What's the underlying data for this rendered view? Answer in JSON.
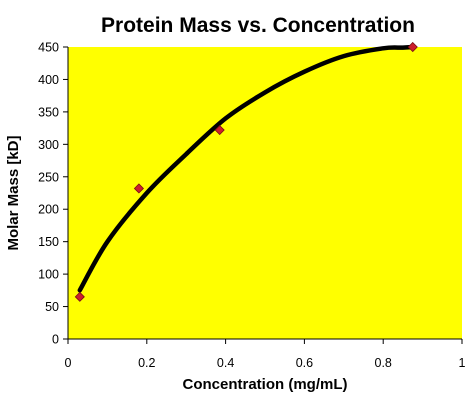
{
  "chart_data": {
    "type": "scatter",
    "title": "Protein Mass vs. Concentration",
    "xlabel": "Concentration (mg/mL)",
    "ylabel": "Molar Mass [kD]",
    "xlim": [
      0,
      1
    ],
    "ylim": [
      0,
      450
    ],
    "xticks": [
      0,
      0.2,
      0.4,
      0.6,
      0.8,
      1
    ],
    "yticks": [
      0,
      50,
      100,
      150,
      200,
      250,
      300,
      350,
      400,
      450
    ],
    "xtick_labels": [
      "0",
      "0.2",
      "0.4",
      "0.6",
      "0.8",
      "1"
    ],
    "ytick_labels": [
      "0",
      "50",
      "100",
      "150",
      "200",
      "250",
      "300",
      "350",
      "400",
      "450"
    ],
    "grid": false,
    "legend": false,
    "series": [
      {
        "type": "scatter",
        "marker": "diamond",
        "x": [
          0.03,
          0.18,
          0.385,
          0.875
        ],
        "y": [
          65,
          232,
          322,
          450
        ]
      },
      {
        "type": "line",
        "x": [
          0.03,
          0.1,
          0.2,
          0.3,
          0.4,
          0.5,
          0.6,
          0.7,
          0.8,
          0.85,
          0.875
        ],
        "y": [
          75,
          150,
          225,
          285,
          340,
          380,
          412,
          436,
          448,
          449,
          450
        ]
      }
    ],
    "colors": {
      "plot_background": "#ffff00",
      "page_background": "#ffffff",
      "marker_fill": "#cc1f2d",
      "marker_stroke": "#7a0f16",
      "line": "#000000",
      "axis": "#000000"
    }
  }
}
